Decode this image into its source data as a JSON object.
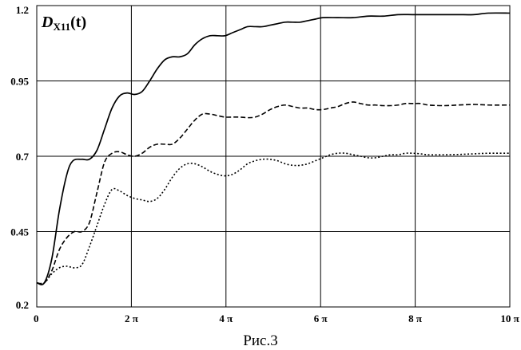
{
  "chart_data": {
    "type": "line",
    "title": "",
    "annotation": {
      "main": "D",
      "sub": "X11",
      "tail": "(t)"
    },
    "xlabel": "",
    "ylabel": "",
    "xlim": [
      0,
      31.416
    ],
    "ylim": [
      0.2,
      1.2
    ],
    "grid": true,
    "legend": "none",
    "x_ticks": [
      {
        "value": 0,
        "label": "0"
      },
      {
        "value": 6.2832,
        "label": "2 π"
      },
      {
        "value": 12.566,
        "label": "4 π"
      },
      {
        "value": 18.85,
        "label": "6 π"
      },
      {
        "value": 25.133,
        "label": "8 π"
      },
      {
        "value": 31.416,
        "label": "10 π"
      }
    ],
    "y_ticks": [
      {
        "value": 0.2,
        "label": "0.2"
      },
      {
        "value": 0.45,
        "label": "0.45"
      },
      {
        "value": 0.7,
        "label": "0.7"
      },
      {
        "value": 0.95,
        "label": "0.95"
      },
      {
        "value": 1.2,
        "label": "1.2"
      }
    ],
    "series": [
      {
        "style": "solid",
        "points": [
          [
            0,
            0.28
          ],
          [
            0.5,
            0.28
          ],
          [
            1.0,
            0.36
          ],
          [
            1.5,
            0.52
          ],
          [
            2.0,
            0.64
          ],
          [
            2.4,
            0.685
          ],
          [
            3.0,
            0.69
          ],
          [
            3.5,
            0.69
          ],
          [
            4.0,
            0.72
          ],
          [
            4.5,
            0.79
          ],
          [
            5.0,
            0.86
          ],
          [
            5.5,
            0.9
          ],
          [
            6.0,
            0.91
          ],
          [
            6.5,
            0.905
          ],
          [
            7.0,
            0.915
          ],
          [
            7.5,
            0.95
          ],
          [
            8.0,
            0.99
          ],
          [
            8.5,
            1.02
          ],
          [
            9.0,
            1.03
          ],
          [
            9.5,
            1.03
          ],
          [
            10.0,
            1.04
          ],
          [
            10.5,
            1.07
          ],
          [
            11.0,
            1.09
          ],
          [
            11.5,
            1.1
          ],
          [
            12.0,
            1.1
          ],
          [
            12.5,
            1.1
          ],
          [
            13.0,
            1.11
          ],
          [
            13.5,
            1.12
          ],
          [
            14.0,
            1.13
          ],
          [
            14.5,
            1.13
          ],
          [
            15.0,
            1.13
          ],
          [
            15.5,
            1.135
          ],
          [
            16.0,
            1.14
          ],
          [
            16.5,
            1.145
          ],
          [
            17.0,
            1.145
          ],
          [
            17.5,
            1.145
          ],
          [
            18.0,
            1.15
          ],
          [
            18.5,
            1.155
          ],
          [
            19.0,
            1.16
          ],
          [
            20.0,
            1.16
          ],
          [
            21.0,
            1.16
          ],
          [
            22.0,
            1.165
          ],
          [
            23.0,
            1.165
          ],
          [
            24.0,
            1.17
          ],
          [
            25.0,
            1.17
          ],
          [
            26.0,
            1.17
          ],
          [
            27.0,
            1.17
          ],
          [
            28.0,
            1.17
          ],
          [
            29.0,
            1.17
          ],
          [
            30.0,
            1.175
          ],
          [
            31.4,
            1.175
          ]
        ]
      },
      {
        "style": "dashed",
        "points": [
          [
            0,
            0.28
          ],
          [
            0.5,
            0.28
          ],
          [
            1.0,
            0.32
          ],
          [
            1.5,
            0.39
          ],
          [
            2.0,
            0.43
          ],
          [
            2.5,
            0.45
          ],
          [
            3.0,
            0.45
          ],
          [
            3.5,
            0.48
          ],
          [
            4.0,
            0.58
          ],
          [
            4.5,
            0.68
          ],
          [
            5.0,
            0.71
          ],
          [
            5.5,
            0.715
          ],
          [
            6.0,
            0.705
          ],
          [
            6.5,
            0.7
          ],
          [
            7.0,
            0.71
          ],
          [
            7.5,
            0.73
          ],
          [
            8.0,
            0.74
          ],
          [
            8.5,
            0.74
          ],
          [
            9.0,
            0.74
          ],
          [
            9.5,
            0.76
          ],
          [
            10.0,
            0.79
          ],
          [
            10.5,
            0.82
          ],
          [
            11.0,
            0.84
          ],
          [
            11.5,
            0.84
          ],
          [
            12.0,
            0.835
          ],
          [
            12.5,
            0.83
          ],
          [
            13.0,
            0.83
          ],
          [
            13.5,
            0.83
          ],
          [
            14.0,
            0.828
          ],
          [
            14.5,
            0.83
          ],
          [
            15.0,
            0.84
          ],
          [
            15.5,
            0.855
          ],
          [
            16.0,
            0.865
          ],
          [
            16.5,
            0.87
          ],
          [
            17.0,
            0.865
          ],
          [
            17.5,
            0.86
          ],
          [
            18.0,
            0.86
          ],
          [
            18.5,
            0.855
          ],
          [
            19.0,
            0.855
          ],
          [
            19.5,
            0.86
          ],
          [
            20.0,
            0.865
          ],
          [
            20.5,
            0.875
          ],
          [
            21.0,
            0.88
          ],
          [
            21.5,
            0.875
          ],
          [
            22.0,
            0.87
          ],
          [
            22.5,
            0.87
          ],
          [
            23.0,
            0.868
          ],
          [
            23.5,
            0.868
          ],
          [
            24.0,
            0.87
          ],
          [
            24.5,
            0.875
          ],
          [
            25.0,
            0.875
          ],
          [
            25.5,
            0.875
          ],
          [
            26.0,
            0.87
          ],
          [
            27.0,
            0.868
          ],
          [
            28.0,
            0.87
          ],
          [
            29.0,
            0.872
          ],
          [
            30.0,
            0.87
          ],
          [
            31.4,
            0.87
          ]
        ]
      },
      {
        "style": "dotted",
        "points": [
          [
            0,
            0.28
          ],
          [
            0.5,
            0.28
          ],
          [
            1.0,
            0.31
          ],
          [
            1.5,
            0.33
          ],
          [
            2.0,
            0.335
          ],
          [
            2.5,
            0.33
          ],
          [
            3.0,
            0.34
          ],
          [
            3.5,
            0.4
          ],
          [
            4.0,
            0.47
          ],
          [
            4.5,
            0.54
          ],
          [
            5.0,
            0.59
          ],
          [
            5.5,
            0.585
          ],
          [
            6.0,
            0.57
          ],
          [
            6.5,
            0.56
          ],
          [
            7.0,
            0.555
          ],
          [
            7.5,
            0.55
          ],
          [
            8.0,
            0.56
          ],
          [
            8.5,
            0.59
          ],
          [
            9.0,
            0.63
          ],
          [
            9.5,
            0.66
          ],
          [
            10.0,
            0.675
          ],
          [
            10.5,
            0.675
          ],
          [
            11.0,
            0.665
          ],
          [
            11.5,
            0.65
          ],
          [
            12.0,
            0.64
          ],
          [
            12.5,
            0.635
          ],
          [
            13.0,
            0.64
          ],
          [
            13.5,
            0.655
          ],
          [
            14.0,
            0.675
          ],
          [
            14.5,
            0.685
          ],
          [
            15.0,
            0.69
          ],
          [
            15.5,
            0.69
          ],
          [
            16.0,
            0.685
          ],
          [
            16.5,
            0.675
          ],
          [
            17.0,
            0.67
          ],
          [
            17.5,
            0.67
          ],
          [
            18.0,
            0.675
          ],
          [
            18.5,
            0.685
          ],
          [
            19.0,
            0.695
          ],
          [
            19.5,
            0.705
          ],
          [
            20.0,
            0.71
          ],
          [
            20.5,
            0.71
          ],
          [
            21.0,
            0.705
          ],
          [
            21.5,
            0.7
          ],
          [
            22.0,
            0.695
          ],
          [
            22.5,
            0.695
          ],
          [
            23.0,
            0.7
          ],
          [
            23.5,
            0.705
          ],
          [
            24.0,
            0.705
          ],
          [
            24.5,
            0.71
          ],
          [
            25.0,
            0.71
          ],
          [
            25.5,
            0.708
          ],
          [
            26.0,
            0.705
          ],
          [
            27.0,
            0.705
          ],
          [
            28.0,
            0.706
          ],
          [
            29.0,
            0.708
          ],
          [
            30.0,
            0.71
          ],
          [
            31.4,
            0.71
          ]
        ]
      }
    ],
    "caption": "Рис.3"
  }
}
